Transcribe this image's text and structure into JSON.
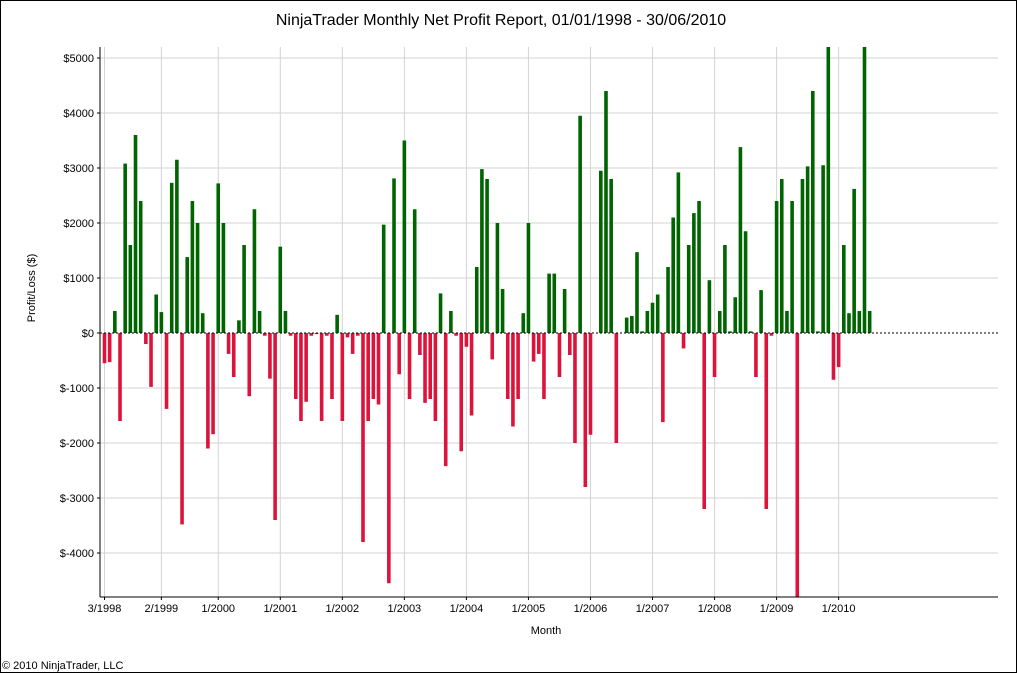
{
  "footer": {
    "copyright": "© 2010 NinjaTrader, LLC"
  },
  "chart_data": {
    "type": "bar",
    "title": "NinjaTrader Monthly Net Profit Report, 01/01/1998 - 30/06/2010",
    "xlabel": "Month",
    "ylabel": "Profit/Loss ($)",
    "ylim": [
      -4800,
      5200
    ],
    "yticks": [
      5000,
      4000,
      3000,
      2000,
      1000,
      0,
      -1000,
      -2000,
      -3000,
      -4000
    ],
    "ytick_labels": [
      "$5000",
      "$4000",
      "$3000",
      "$2000",
      "$1000",
      "$0",
      "$-1000",
      "$-2000",
      "$-3000",
      "$-4000"
    ],
    "xtick_labels": [
      {
        "label": "3/1998",
        "month_index": 0
      },
      {
        "label": "2/1999",
        "month_index": 11
      },
      {
        "label": "1/2000",
        "month_index": 22
      },
      {
        "label": "1/2001",
        "month_index": 34
      },
      {
        "label": "1/2002",
        "month_index": 46
      },
      {
        "label": "1/2003",
        "month_index": 58
      },
      {
        "label": "1/2004",
        "month_index": 70
      },
      {
        "label": "1/2005",
        "month_index": 82
      },
      {
        "label": "1/2006",
        "month_index": 94
      },
      {
        "label": "1/2007",
        "month_index": 106
      },
      {
        "label": "1/2008",
        "month_index": 118
      },
      {
        "label": "1/2009",
        "month_index": 130
      },
      {
        "label": "1/2010",
        "month_index": 142
      }
    ],
    "grid": true,
    "zero_line": "dashed",
    "colors": {
      "profit": "#006400",
      "loss": "#DC143C"
    },
    "values": [
      -550,
      -530,
      400,
      -1600,
      3080,
      1600,
      3600,
      2400,
      -200,
      -980,
      700,
      380,
      -1380,
      2730,
      3150,
      -3480,
      1380,
      2400,
      2000,
      360,
      -2100,
      -1840,
      2720,
      2000,
      -380,
      -800,
      230,
      1600,
      -1150,
      2250,
      400,
      -50,
      -830,
      -3400,
      1570,
      400,
      -50,
      -1200,
      -1600,
      -1250,
      -50,
      -20,
      -1600,
      -50,
      -1200,
      330,
      -1600,
      -80,
      -380,
      -50,
      -3800,
      -1600,
      -1200,
      -1300,
      1970,
      -4550,
      2810,
      -750,
      3500,
      -1200,
      2250,
      -400,
      -1270,
      -1200,
      -1600,
      720,
      -2420,
      400,
      -50,
      -2150,
      -250,
      -1500,
      1200,
      2980,
      2800,
      -480,
      2000,
      800,
      -1200,
      -1700,
      -1200,
      360,
      2000,
      -520,
      -380,
      -1200,
      1080,
      1080,
      -800,
      800,
      -400,
      -2000,
      3950,
      -2800,
      -1850,
      0,
      2950,
      4400,
      2800,
      -2000,
      0,
      280,
      310,
      1470,
      30,
      400,
      550,
      700,
      -1620,
      1200,
      2100,
      2920,
      -280,
      1600,
      2180,
      2400,
      -3200,
      960,
      -800,
      400,
      1600,
      30,
      650,
      3380,
      1850,
      30,
      -800,
      780,
      -3200,
      -50,
      2400,
      2800,
      400,
      2400,
      -4800,
      2800,
      3030,
      4400,
      30,
      3050,
      5200,
      -850,
      -620,
      1600,
      360,
      2620,
      400,
      5200,
      400
    ]
  }
}
